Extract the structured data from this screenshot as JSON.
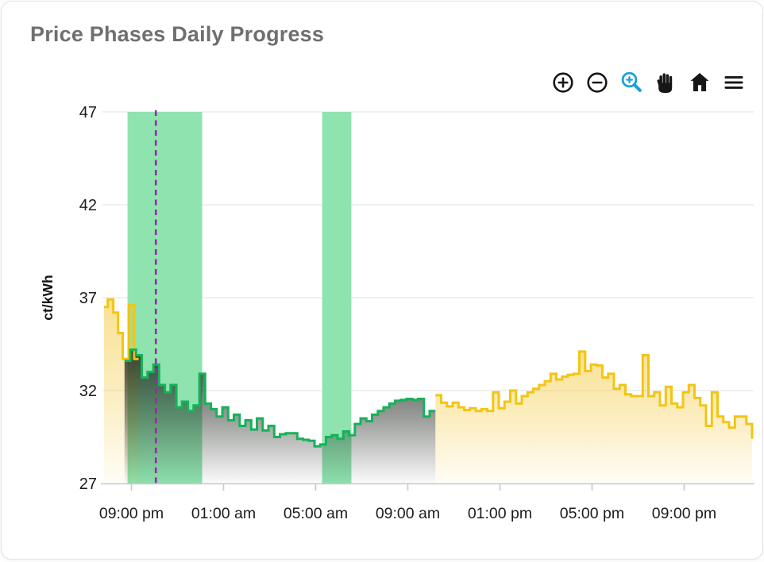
{
  "header": {
    "title": "Price Phases Daily Progress"
  },
  "toolbar": {
    "buttons": [
      {
        "name": "zoom-in",
        "label": "Zoom in",
        "color": "#161616"
      },
      {
        "name": "zoom-out",
        "label": "Zoom out",
        "color": "#161616"
      },
      {
        "name": "box-zoom",
        "label": "Box zoom",
        "color": "#1a9fd6"
      },
      {
        "name": "pan",
        "label": "Pan",
        "color": "#161616"
      },
      {
        "name": "home",
        "label": "Reset view",
        "color": "#161616"
      },
      {
        "name": "menu",
        "label": "Menu",
        "color": "#161616"
      }
    ]
  },
  "chart_data": {
    "type": "area",
    "subtype": "step-line-with-gradient-fill",
    "title": "Price Phases Daily Progress",
    "xlabel": "",
    "ylabel": "ct/kWh",
    "ylim": [
      27,
      47
    ],
    "yticks": [
      27,
      32,
      37,
      42,
      47
    ],
    "xlim": [
      19.81,
      47.95
    ],
    "grid": true,
    "legend": "none",
    "xticks": [
      {
        "t": 21,
        "label": "09:00 pm"
      },
      {
        "t": 25,
        "label": "01:00 am"
      },
      {
        "t": 29,
        "label": "05:00 am"
      },
      {
        "t": 33,
        "label": "09:00 am"
      },
      {
        "t": 37,
        "label": "01:00 pm"
      },
      {
        "t": 41,
        "label": "05:00 pm"
      },
      {
        "t": 45,
        "label": "09:00 pm"
      }
    ],
    "bands": [
      {
        "name": "cheap-phase-window-1",
        "from": 20.83,
        "to": 24.07,
        "color": "#8fe3af"
      },
      {
        "name": "cheap-phase-window-2",
        "from": 29.28,
        "to": 30.55,
        "color": "#8fe3af"
      }
    ],
    "now_line": {
      "t": 22.06,
      "color": "#9c27b0",
      "style": "dashed"
    },
    "colors": {
      "gold_line": "#f3c513",
      "green_line": "#16b25a",
      "dark_fill": "#20261f",
      "gold_fill": "#f3c52e",
      "band": "#8fe3af",
      "grid": "#ececec",
      "axis": "#c9c9c9"
    },
    "series": [
      {
        "name": "price-expensive-evening",
        "color": "#f3c513",
        "fill": "gold",
        "points": [
          [
            19.81,
            36.5
          ],
          [
            19.97,
            36.9
          ],
          [
            20.21,
            36.2
          ],
          [
            20.42,
            35.1
          ],
          [
            20.62,
            33.7
          ],
          [
            20.88,
            36.6
          ],
          [
            21.12,
            33.7
          ]
        ],
        "end": 21.31
      },
      {
        "name": "price-cheap-night",
        "color": "#16b25a",
        "fill": "dark",
        "t0": 20.7,
        "dt": 0.25,
        "values": [
          33.6,
          34.2,
          33.9,
          32.7,
          33.0,
          33.4,
          32.3,
          31.9,
          32.3,
          31.1,
          31.4,
          30.9,
          31.2,
          32.9,
          31.3,
          31.0,
          30.6,
          31.1,
          30.4,
          30.7,
          30.1,
          30.4,
          29.9,
          30.5,
          29.85,
          30.1,
          29.5,
          29.65,
          29.7,
          29.7,
          29.4,
          29.35,
          29.3,
          29.0,
          29.1,
          29.5,
          29.6,
          29.4,
          29.8,
          29.6,
          30.2,
          30.5,
          30.35,
          30.7,
          30.9,
          31.1,
          31.3,
          31.45,
          31.5,
          31.55,
          31.5,
          31.55,
          30.6,
          30.9
        ]
      },
      {
        "name": "price-expensive-day",
        "color": "#f3c513",
        "fill": "gold",
        "t0": 34.2,
        "dt": 0.25,
        "values": [
          31.75,
          31.35,
          31.15,
          31.35,
          31.1,
          30.95,
          31.05,
          30.9,
          31.0,
          30.9,
          31.9,
          31.05,
          31.4,
          32.0,
          31.3,
          31.7,
          31.9,
          32.1,
          32.3,
          32.5,
          32.9,
          32.6,
          32.75,
          32.85,
          32.9,
          34.1,
          33.05,
          33.4,
          33.35,
          32.7,
          32.9,
          32.1,
          32.3,
          31.8,
          31.7,
          31.7,
          33.9,
          31.7,
          31.9,
          31.2,
          32.2,
          31.3,
          31.1,
          31.9,
          32.3,
          31.6,
          31.2,
          30.1,
          31.9,
          30.6,
          30.3,
          30.0,
          30.6,
          30.6,
          30.2,
          29.4
        ]
      }
    ]
  }
}
